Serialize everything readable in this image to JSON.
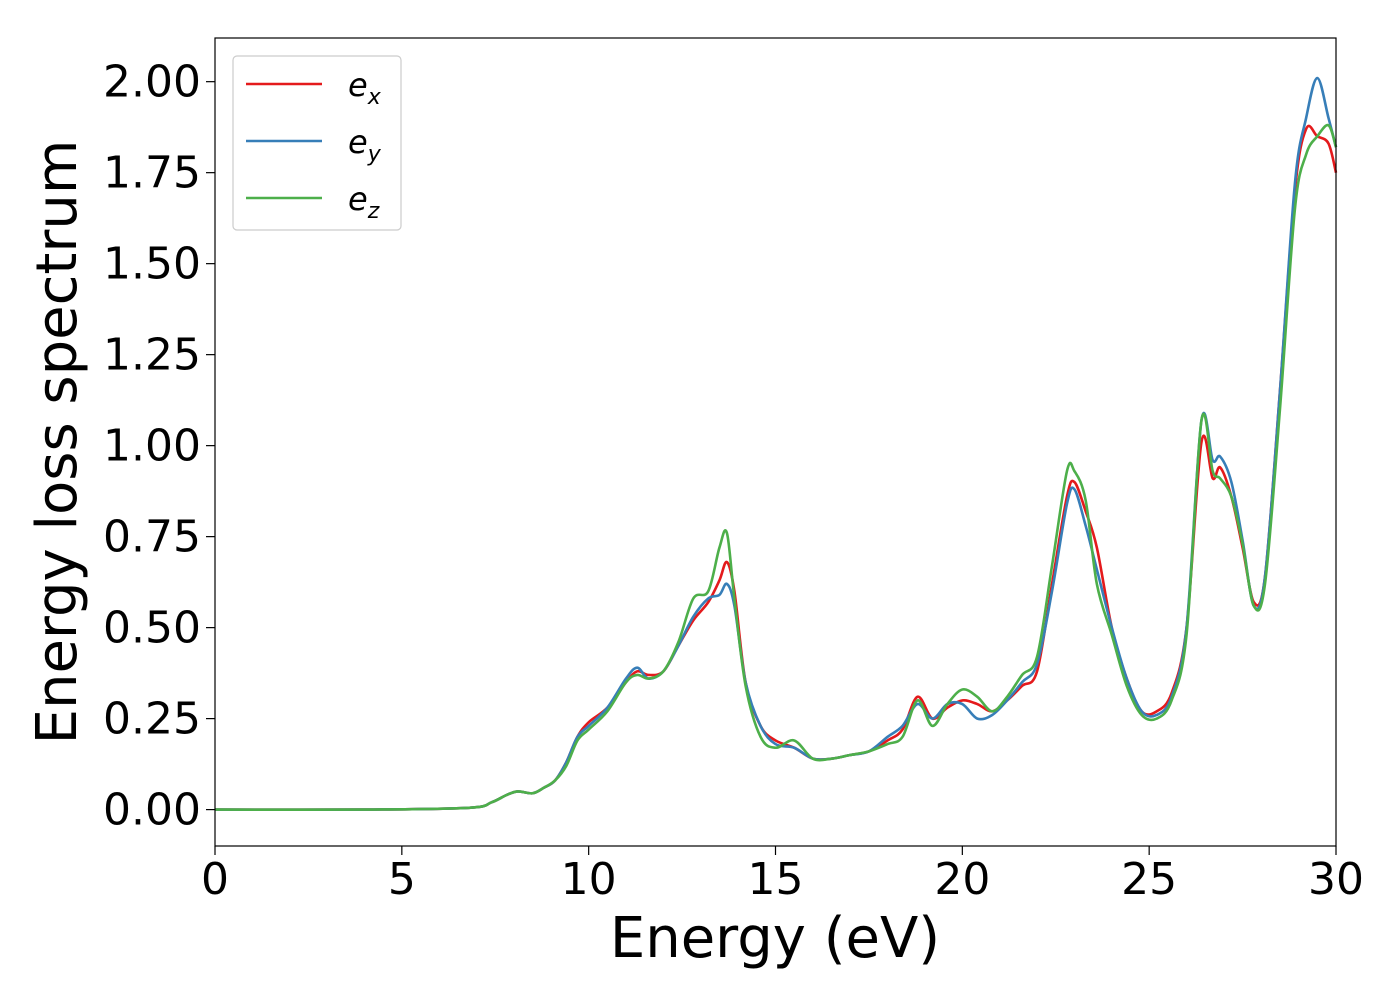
{
  "chart_data": {
    "type": "line",
    "xlabel": "Energy (eV)",
    "ylabel": "Energy loss spectrum",
    "xlim": [
      0,
      30
    ],
    "ylim": [
      -0.1,
      2.12
    ],
    "xticks": [
      0,
      5,
      10,
      15,
      20,
      25,
      30
    ],
    "xtick_labels": [
      "0",
      "5",
      "10",
      "15",
      "20",
      "25",
      "30"
    ],
    "yticks": [
      0.0,
      0.25,
      0.5,
      0.75,
      1.0,
      1.25,
      1.5,
      1.75,
      2.0
    ],
    "ytick_labels": [
      "0.00",
      "0.25",
      "0.50",
      "0.75",
      "1.00",
      "1.25",
      "1.50",
      "1.75",
      "2.00"
    ],
    "grid": false,
    "legend_position": "top-left",
    "series": [
      {
        "name": "e_x",
        "legend_base": "e",
        "legend_sub": "x",
        "color": "#e41a1c",
        "x": [
          0,
          4,
          6.8,
          7.4,
          7.8,
          8.1,
          8.5,
          8.8,
          9.1,
          9.4,
          9.7,
          10.0,
          10.5,
          11.0,
          11.3,
          11.6,
          12.0,
          12.4,
          12.8,
          13.2,
          13.5,
          13.7,
          13.9,
          14.2,
          14.6,
          15.0,
          15.5,
          16.0,
          16.5,
          17.0,
          17.5,
          18.0,
          18.4,
          18.8,
          19.2,
          19.6,
          20.0,
          20.4,
          20.8,
          21.2,
          21.6,
          22.0,
          22.4,
          22.8,
          23.0,
          23.3,
          23.6,
          24.0,
          24.4,
          24.8,
          25.2,
          25.6,
          26.0,
          26.4,
          26.7,
          26.9,
          27.2,
          27.5,
          27.8,
          28.1,
          28.5,
          28.9,
          29.2,
          29.5,
          29.8,
          30.0
        ],
        "y": [
          0.0,
          0.0,
          0.005,
          0.02,
          0.04,
          0.05,
          0.045,
          0.06,
          0.08,
          0.13,
          0.2,
          0.24,
          0.28,
          0.35,
          0.38,
          0.37,
          0.38,
          0.45,
          0.52,
          0.57,
          0.63,
          0.68,
          0.6,
          0.35,
          0.23,
          0.19,
          0.17,
          0.14,
          0.14,
          0.15,
          0.16,
          0.19,
          0.22,
          0.31,
          0.25,
          0.28,
          0.3,
          0.29,
          0.27,
          0.3,
          0.34,
          0.38,
          0.62,
          0.86,
          0.9,
          0.82,
          0.72,
          0.5,
          0.36,
          0.27,
          0.27,
          0.32,
          0.5,
          1.01,
          0.91,
          0.94,
          0.86,
          0.72,
          0.57,
          0.64,
          1.15,
          1.7,
          1.87,
          1.85,
          1.83,
          1.75
        ]
      },
      {
        "name": "e_y",
        "legend_base": "e",
        "legend_sub": "y",
        "color": "#377eb8",
        "x": [
          0,
          4,
          6.8,
          7.4,
          7.8,
          8.1,
          8.5,
          8.8,
          9.1,
          9.4,
          9.7,
          10.0,
          10.5,
          11.0,
          11.3,
          11.6,
          12.0,
          12.4,
          12.8,
          13.2,
          13.5,
          13.7,
          13.9,
          14.2,
          14.6,
          15.0,
          15.5,
          16.0,
          16.5,
          17.0,
          17.5,
          18.0,
          18.4,
          18.8,
          19.2,
          19.6,
          20.0,
          20.4,
          20.8,
          21.2,
          21.6,
          22.0,
          22.4,
          22.8,
          23.0,
          23.3,
          23.6,
          24.0,
          24.4,
          24.8,
          25.2,
          25.6,
          26.0,
          26.4,
          26.7,
          26.9,
          27.2,
          27.5,
          27.8,
          28.1,
          28.5,
          28.9,
          29.2,
          29.5,
          29.8,
          30.0
        ],
        "y": [
          0.0,
          0.0,
          0.005,
          0.02,
          0.04,
          0.05,
          0.045,
          0.06,
          0.08,
          0.13,
          0.2,
          0.23,
          0.28,
          0.36,
          0.39,
          0.36,
          0.38,
          0.45,
          0.53,
          0.58,
          0.59,
          0.62,
          0.56,
          0.35,
          0.23,
          0.18,
          0.17,
          0.14,
          0.14,
          0.15,
          0.16,
          0.2,
          0.23,
          0.29,
          0.25,
          0.29,
          0.29,
          0.25,
          0.26,
          0.3,
          0.35,
          0.4,
          0.6,
          0.84,
          0.88,
          0.78,
          0.66,
          0.5,
          0.36,
          0.27,
          0.26,
          0.31,
          0.5,
          1.07,
          0.96,
          0.97,
          0.9,
          0.74,
          0.56,
          0.64,
          1.15,
          1.72,
          1.9,
          2.01,
          1.9,
          1.82
        ]
      },
      {
        "name": "e_z",
        "legend_base": "e",
        "legend_sub": "z",
        "color": "#4daf4a",
        "x": [
          0,
          4,
          6.8,
          7.4,
          7.8,
          8.1,
          8.5,
          8.8,
          9.1,
          9.4,
          9.7,
          10.0,
          10.5,
          11.0,
          11.3,
          11.6,
          12.0,
          12.4,
          12.8,
          13.2,
          13.5,
          13.7,
          13.9,
          14.2,
          14.6,
          15.0,
          15.5,
          16.0,
          16.5,
          17.0,
          17.5,
          18.0,
          18.4,
          18.8,
          19.2,
          19.6,
          20.0,
          20.4,
          20.8,
          21.2,
          21.6,
          22.0,
          22.4,
          22.8,
          23.0,
          23.3,
          23.6,
          24.0,
          24.4,
          24.8,
          25.2,
          25.6,
          26.0,
          26.4,
          26.7,
          26.9,
          27.2,
          27.5,
          27.8,
          28.1,
          28.5,
          28.9,
          29.2,
          29.5,
          29.8,
          30.0
        ],
        "y": [
          0.0,
          0.0,
          0.005,
          0.02,
          0.04,
          0.05,
          0.045,
          0.06,
          0.08,
          0.12,
          0.19,
          0.22,
          0.27,
          0.35,
          0.37,
          0.36,
          0.38,
          0.46,
          0.58,
          0.6,
          0.72,
          0.76,
          0.58,
          0.34,
          0.2,
          0.17,
          0.19,
          0.14,
          0.14,
          0.15,
          0.16,
          0.18,
          0.2,
          0.3,
          0.23,
          0.29,
          0.33,
          0.31,
          0.27,
          0.31,
          0.37,
          0.42,
          0.67,
          0.93,
          0.93,
          0.85,
          0.62,
          0.48,
          0.34,
          0.26,
          0.25,
          0.3,
          0.48,
          1.07,
          0.93,
          0.91,
          0.86,
          0.73,
          0.56,
          0.62,
          1.1,
          1.65,
          1.8,
          1.85,
          1.88,
          1.82
        ]
      }
    ]
  }
}
